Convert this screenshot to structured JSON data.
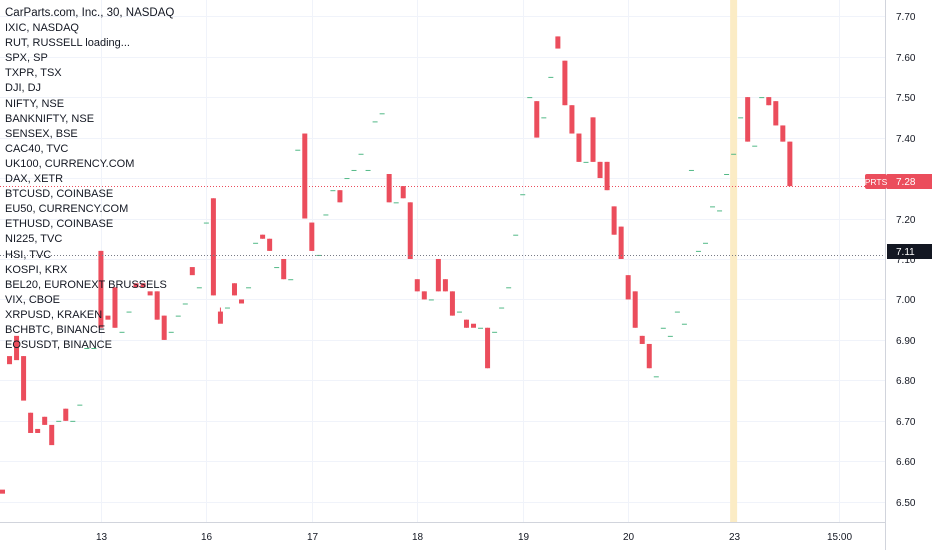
{
  "colors": {
    "up": "#53b987",
    "down": "#eb4d5c",
    "grid": "#f0f3fa",
    "axis_text": "#131722",
    "highlight": "#fbecc5",
    "dotted_price": "#eb4d5c",
    "dotted_level": "#787b86"
  },
  "legend": {
    "title": "CarParts.com, Inc., 30, NASDAQ",
    "symbols": [
      "IXIC, NASDAQ",
      "RUT, RUSSELL loading...",
      "SPX, SP",
      "TXPR, TSX",
      "DJI, DJ",
      "NIFTY, NSE",
      "BANKNIFTY, NSE",
      "SENSEX, BSE",
      "CAC40, TVC",
      "UK100, CURRENCY.COM",
      "DAX, XETR",
      "BTCUSD, COINBASE",
      "EU50, CURRENCY.COM",
      "ETHUSD, COINBASE",
      "NI225, TVC",
      "HSI, TVC",
      "KOSPI, KRX",
      "BEL20, EURONEXT BRUSSELS",
      "VIX, CBOE",
      "XRPUSD, KRAKEN",
      "BCHBTC, BINANCE",
      "EOSUSDT, BINANCE"
    ]
  },
  "price_badges": {
    "last_label": "PRTS",
    "last_value": "7.28",
    "level_value": "7.11"
  },
  "chart_data": {
    "type": "candlestick",
    "title": "CarParts.com, Inc., 30, NASDAQ",
    "ylim": [
      6.45,
      7.74
    ],
    "y_ticks": [
      6.5,
      6.6,
      6.7,
      6.8,
      6.9,
      7.0,
      7.1,
      7.2,
      7.3,
      7.4,
      7.5,
      7.6,
      7.7
    ],
    "y_tick_labels": [
      "6.50",
      "6.60",
      "6.70",
      "6.80",
      "6.90",
      "7.00",
      "7.10",
      "7.20",
      "7.30",
      "7.40",
      "7.50",
      "7.60",
      "7.70"
    ],
    "x_tick_labels": [
      {
        "index": 14,
        "label": "13"
      },
      {
        "index": 29,
        "label": "16"
      },
      {
        "index": 44,
        "label": "17"
      },
      {
        "index": 59,
        "label": "18"
      },
      {
        "index": 74,
        "label": "19"
      },
      {
        "index": 89,
        "label": "20"
      },
      {
        "index": 104,
        "label": "23"
      },
      {
        "index": 119,
        "label": "15:00"
      }
    ],
    "highlight_index": 104,
    "last_price": 7.28,
    "horizontal_level": 7.11,
    "candles": [
      [
        6.53,
        6.86,
        6.86,
        6.52
      ],
      [
        6.86,
        6.93,
        6.93,
        6.84
      ],
      [
        6.91,
        6.91,
        6.91,
        6.85
      ],
      [
        6.86,
        6.86,
        6.76,
        6.75
      ],
      [
        6.72,
        6.72,
        6.68,
        6.67
      ],
      [
        6.68,
        6.72,
        6.72,
        6.67
      ],
      [
        6.71,
        6.71,
        6.69,
        6.69
      ],
      [
        6.69,
        6.73,
        6.73,
        6.64
      ],
      [
        6.7,
        6.74,
        6.74,
        6.7
      ],
      [
        6.73,
        6.73,
        6.7,
        6.7
      ],
      [
        6.7,
        6.73,
        6.73,
        6.7
      ],
      [
        6.74,
        6.88,
        6.88,
        6.74
      ],
      [
        6.88,
        6.92,
        6.92,
        6.88
      ],
      [
        6.88,
        6.88,
        6.88,
        6.88
      ],
      [
        7.12,
        7.12,
        6.96,
        6.93
      ],
      [
        6.96,
        7.02,
        7.02,
        6.95
      ],
      [
        7.03,
        7.03,
        6.93,
        6.93
      ],
      [
        6.92,
        6.97,
        6.97,
        6.92
      ],
      [
        6.97,
        7.04,
        7.04,
        6.97
      ],
      [
        7.04,
        7.05,
        7.05,
        7.03
      ],
      [
        7.04,
        7.04,
        7.03,
        7.03
      ],
      [
        7.02,
        7.03,
        7.03,
        7.01
      ],
      [
        7.02,
        7.02,
        6.95,
        6.95
      ],
      [
        6.96,
        6.96,
        6.9,
        6.9
      ],
      [
        6.92,
        6.96,
        6.96,
        6.92
      ],
      [
        6.96,
        7.0,
        7.0,
        6.96
      ],
      [
        6.99,
        7.08,
        7.08,
        6.99
      ],
      [
        7.08,
        7.08,
        7.08,
        7.06
      ],
      [
        7.03,
        7.19,
        7.19,
        7.03
      ],
      [
        7.19,
        7.23,
        7.23,
        7.19
      ],
      [
        7.25,
        7.25,
        7.01,
        7.01
      ],
      [
        6.97,
        6.98,
        6.95,
        6.94
      ],
      [
        6.98,
        7.01,
        7.01,
        6.98
      ],
      [
        7.04,
        7.04,
        7.01,
        7.01
      ],
      [
        7.0,
        7.05,
        7.05,
        6.99
      ],
      [
        7.03,
        7.09,
        7.09,
        7.03
      ],
      [
        7.14,
        7.18,
        7.18,
        7.14
      ],
      [
        7.16,
        7.16,
        7.15,
        7.15
      ],
      [
        7.15,
        7.15,
        7.12,
        7.12
      ],
      [
        7.08,
        7.12,
        7.12,
        7.08
      ],
      [
        7.1,
        7.1,
        7.05,
        7.05
      ],
      [
        7.05,
        7.05,
        7.05,
        7.05
      ],
      [
        7.37,
        7.37,
        7.37,
        7.37
      ],
      [
        7.41,
        7.41,
        7.2,
        7.2
      ],
      [
        7.19,
        7.19,
        7.12,
        7.12
      ],
      [
        7.11,
        7.2,
        7.2,
        7.11
      ],
      [
        7.21,
        7.27,
        7.27,
        7.21
      ],
      [
        7.27,
        7.28,
        7.28,
        7.27
      ],
      [
        7.27,
        7.27,
        7.24,
        7.24
      ],
      [
        7.3,
        7.35,
        7.35,
        7.3
      ],
      [
        7.32,
        7.38,
        7.38,
        7.32
      ],
      [
        7.36,
        7.39,
        7.39,
        7.36
      ],
      [
        7.32,
        7.43,
        7.43,
        7.32
      ],
      [
        7.44,
        7.48,
        7.48,
        7.44
      ],
      [
        7.46,
        7.51,
        7.51,
        7.46
      ],
      [
        7.31,
        7.31,
        7.24,
        7.24
      ],
      [
        7.24,
        7.28,
        7.28,
        7.24
      ],
      [
        7.28,
        7.28,
        7.25,
        7.25
      ],
      [
        7.24,
        7.24,
        7.1,
        7.1
      ],
      [
        7.05,
        7.05,
        7.02,
        7.02
      ],
      [
        7.02,
        7.02,
        7.0,
        7.0
      ],
      [
        7.0,
        7.02,
        7.02,
        7.0
      ],
      [
        7.1,
        7.1,
        7.02,
        7.02
      ],
      [
        7.05,
        7.05,
        7.02,
        7.02
      ],
      [
        7.02,
        7.02,
        6.96,
        6.96
      ],
      [
        6.97,
        6.98,
        6.98,
        6.97
      ],
      [
        6.95,
        6.95,
        6.93,
        6.93
      ],
      [
        6.94,
        6.95,
        6.95,
        6.93
      ],
      [
        6.93,
        6.95,
        6.95,
        6.93
      ],
      [
        6.93,
        6.93,
        6.83,
        6.83
      ],
      [
        6.92,
        6.98,
        6.98,
        6.92
      ],
      [
        6.98,
        7.03,
        7.03,
        6.98
      ],
      [
        7.03,
        7.15,
        7.15,
        7.03
      ],
      [
        7.16,
        7.26,
        7.26,
        7.16
      ],
      [
        7.26,
        7.55,
        7.55,
        7.26
      ],
      [
        7.5,
        7.5,
        7.5,
        7.5
      ],
      [
        7.49,
        7.49,
        7.4,
        7.4
      ],
      [
        7.45,
        7.52,
        7.52,
        7.45
      ],
      [
        7.55,
        7.65,
        7.65,
        7.55
      ],
      [
        7.65,
        7.65,
        7.62,
        7.62
      ],
      [
        7.59,
        7.59,
        7.48,
        7.48
      ],
      [
        7.48,
        7.48,
        7.41,
        7.41
      ],
      [
        7.41,
        7.41,
        7.34,
        7.34
      ],
      [
        7.34,
        7.5,
        7.5,
        7.34
      ],
      [
        7.45,
        7.45,
        7.34,
        7.34
      ],
      [
        7.34,
        7.34,
        7.3,
        7.3
      ],
      [
        7.34,
        7.34,
        7.27,
        7.27
      ],
      [
        7.23,
        7.23,
        7.16,
        7.16
      ],
      [
        7.18,
        7.18,
        7.1,
        7.1
      ],
      [
        7.06,
        7.06,
        7.0,
        7.0
      ],
      [
        7.02,
        7.02,
        6.93,
        6.93
      ],
      [
        6.91,
        6.91,
        6.89,
        6.89
      ],
      [
        6.89,
        6.89,
        6.83,
        6.83
      ],
      [
        6.81,
        6.94,
        6.94,
        6.81
      ],
      [
        6.93,
        6.93,
        6.93,
        6.93
      ],
      [
        6.91,
        6.95,
        6.95,
        6.91
      ],
      [
        6.97,
        6.97,
        6.97,
        6.97
      ],
      [
        6.94,
        7.16,
        7.16,
        6.94
      ],
      [
        7.32,
        7.32,
        7.32,
        7.32
      ],
      [
        7.12,
        7.14,
        7.14,
        7.12
      ],
      [
        7.14,
        7.16,
        7.16,
        7.14
      ],
      [
        7.23,
        7.23,
        7.23,
        7.23
      ],
      [
        7.22,
        7.31,
        7.31,
        7.22
      ],
      [
        7.31,
        7.4,
        7.4,
        7.31
      ],
      [
        7.36,
        7.55,
        7.55,
        7.36
      ],
      [
        7.45,
        7.5,
        7.5,
        7.45
      ],
      [
        7.5,
        7.5,
        7.39,
        7.39
      ],
      [
        7.38,
        7.47,
        7.47,
        7.38
      ],
      [
        7.5,
        7.51,
        7.51,
        7.5
      ],
      [
        7.5,
        7.5,
        7.48,
        7.48
      ],
      [
        7.49,
        7.49,
        7.43,
        7.43
      ],
      [
        7.43,
        7.43,
        7.39,
        7.39
      ],
      [
        7.39,
        7.39,
        7.28,
        7.28
      ]
    ]
  }
}
